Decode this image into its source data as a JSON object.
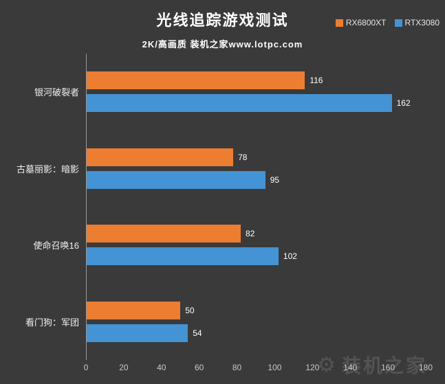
{
  "header": {
    "title": "光线追踪游戏测试",
    "subtitle": "2K/高画质 装机之家www.lotpc.com"
  },
  "legend": [
    {
      "label": "RX6800XT",
      "color": "#ED7D31"
    },
    {
      "label": "RTX3080",
      "color": "#4493D5"
    }
  ],
  "chart_data": {
    "type": "bar",
    "orientation": "horizontal",
    "title": "光线追踪游戏测试",
    "subtitle": "2K/高画质 装机之家www.lotpc.com",
    "categories": [
      "银河破裂者",
      "古墓丽影：暗影",
      "使命召唤16",
      "看门狗：军团"
    ],
    "series": [
      {
        "name": "RX6800XT",
        "color": "#ED7D31",
        "values": [
          116,
          78,
          82,
          50
        ]
      },
      {
        "name": "RTX3080",
        "color": "#4493D5",
        "values": [
          162,
          95,
          102,
          54
        ]
      }
    ],
    "xlim": [
      0,
      180
    ],
    "xticks": [
      0,
      20,
      40,
      60,
      80,
      100,
      120,
      140,
      160,
      180
    ],
    "grid": false,
    "legend_position": "top-right",
    "value_labels": true
  },
  "watermark": {
    "text": "装机之家",
    "icon": "gear-icon"
  }
}
